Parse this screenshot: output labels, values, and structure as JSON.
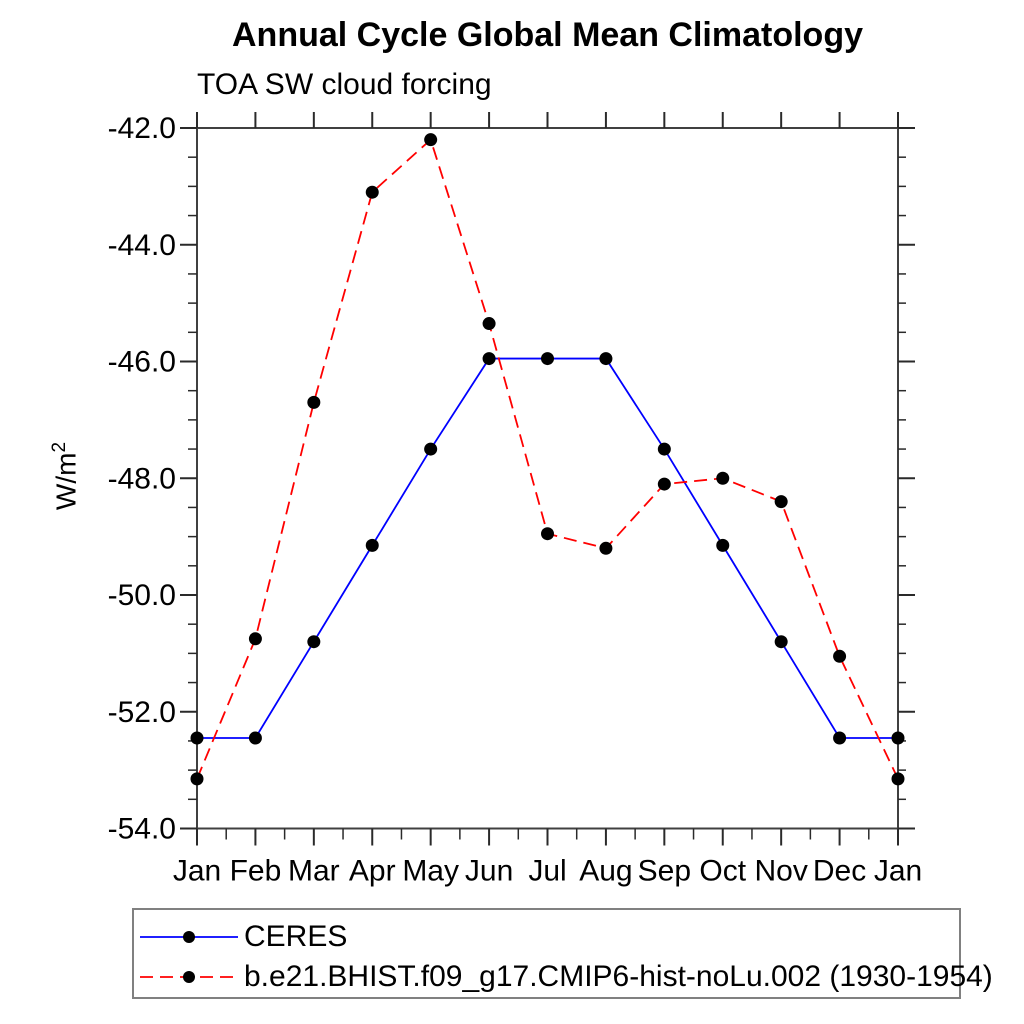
{
  "title": "Annual Cycle Global Mean Climatology",
  "subtitle": "TOA SW cloud forcing",
  "y_axis_title": {
    "base": "W/m",
    "sup": "2"
  },
  "chart_data": {
    "type": "line",
    "categories": [
      "Jan",
      "Feb",
      "Mar",
      "Apr",
      "May",
      "Jun",
      "Jul",
      "Aug",
      "Sep",
      "Oct",
      "Nov",
      "Dec",
      "Jan"
    ],
    "series": [
      {
        "name": "CERES",
        "color": "#0000ff",
        "line_style": "solid",
        "marker": "black-dot",
        "values": [
          -52.45,
          -52.45,
          -50.8,
          -49.15,
          -47.5,
          -45.95,
          -45.95,
          -45.95,
          -47.5,
          -49.15,
          -50.8,
          -52.45,
          -52.45
        ]
      },
      {
        "name": "b.e21.BHIST.f09_g17.CMIP6-hist-noLu.002 (1930-1954)",
        "color": "#ff0000",
        "line_style": "dashed",
        "marker": "black-dot",
        "values": [
          -53.15,
          -50.75,
          -46.7,
          -43.1,
          -42.2,
          -45.35,
          -48.95,
          -49.2,
          -48.1,
          -48.0,
          -48.4,
          -51.05,
          -53.15
        ]
      }
    ],
    "ylim": [
      -54.0,
      -42.0
    ],
    "ytick_values": [
      -42.0,
      -44.0,
      -46.0,
      -48.0,
      -50.0,
      -52.0,
      -54.0
    ],
    "ytick_labels": [
      "-42.0",
      "-44.0",
      "-46.0",
      "-48.0",
      "-50.0",
      "-52.0",
      "-54.0"
    ],
    "y_minor_step": 0.5,
    "x_minor_step": 0.5,
    "grid": false,
    "legend_position": "bottom-left",
    "marker_color": "#000000"
  }
}
